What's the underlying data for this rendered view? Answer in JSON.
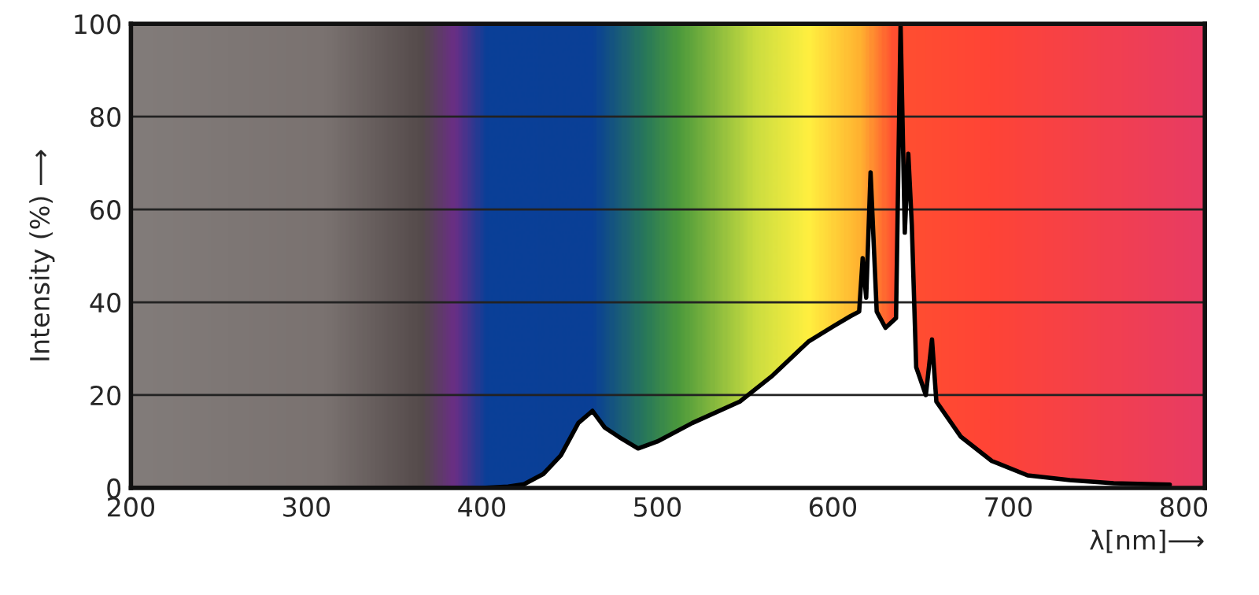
{
  "chart_data": {
    "type": "area",
    "xlabel": "λ[nm]⟶",
    "ylabel": "Intensity (%) ⟶",
    "xlim": [
      200,
      812
    ],
    "ylim": [
      0,
      100
    ],
    "xticks": [
      200,
      300,
      400,
      500,
      600,
      700,
      800
    ],
    "yticks": [
      0,
      20,
      40,
      60,
      80,
      100
    ],
    "grid": "y",
    "series": [
      {
        "color": "#ffffff",
        "x": [
          200,
          300,
          400,
          415,
          424,
          435,
          445,
          455,
          463,
          470,
          478,
          489,
          500,
          520,
          547,
          565,
          586,
          601,
          610,
          615,
          617,
          619,
          621.5,
          625,
          630,
          636,
          638.6,
          641,
          643,
          645,
          647.5,
          653,
          656.5,
          659,
          673,
          690.6,
          711,
          735,
          760,
          792
        ],
        "values": [
          0,
          0,
          0,
          0.3,
          0.8,
          3,
          7,
          14,
          16.6,
          13,
          11,
          8.5,
          10,
          14,
          18.6,
          24,
          31.5,
          35,
          37,
          38,
          49.5,
          41,
          68,
          38,
          34.5,
          36.6,
          100,
          55,
          72,
          56.6,
          26,
          20,
          32,
          18.6,
          11,
          5.8,
          2.7,
          1.7,
          1,
          0.7
        ]
      }
    ]
  }
}
